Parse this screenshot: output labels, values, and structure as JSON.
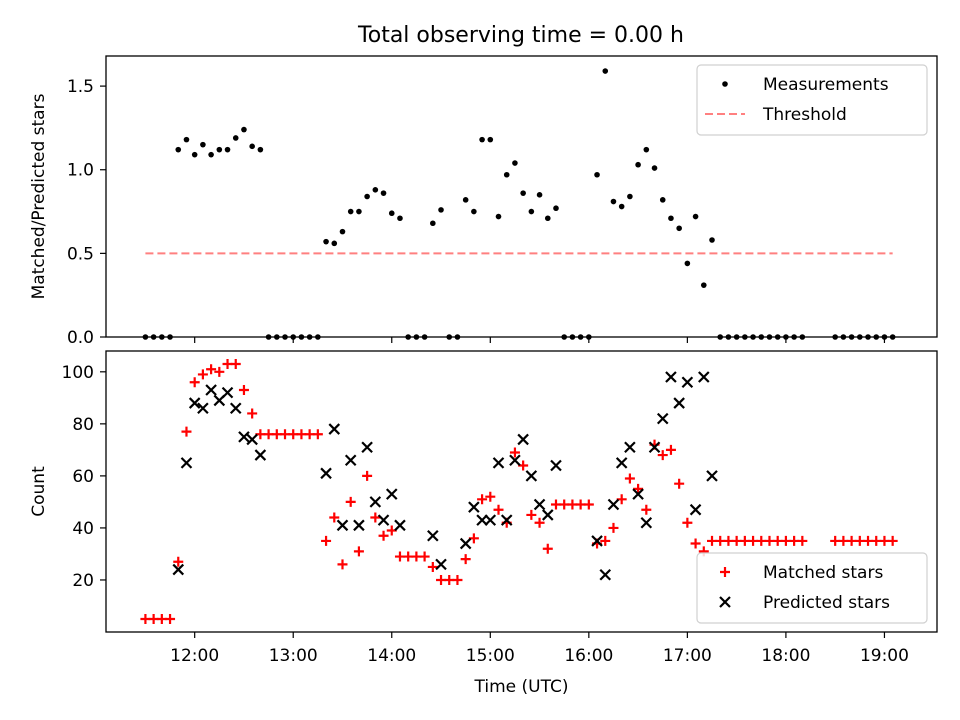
{
  "figure_title": "Total observing time = 0.00 h",
  "chart_data": [
    {
      "type": "scatter",
      "title": "Total observing time = 0.00 h",
      "xlabel": "",
      "ylabel": "Matched/Predicted stars",
      "xlim": [
        "11:06",
        "19:32"
      ],
      "ylim": [
        0,
        1.68
      ],
      "yticks": [
        0.0,
        0.5,
        1.0,
        1.5
      ],
      "ytick_labels": [
        "0.0",
        "0.5",
        "1.0",
        "1.5"
      ],
      "legend_position": "top-right",
      "series": [
        {
          "name": "Measurements",
          "marker": "dot",
          "color": "#000000",
          "points": [
            [
              "11:30",
              0
            ],
            [
              "11:35",
              0
            ],
            [
              "11:40",
              0
            ],
            [
              "11:45",
              0
            ],
            [
              "11:50",
              1.12
            ],
            [
              "11:55",
              1.18
            ],
            [
              "12:00",
              1.09
            ],
            [
              "12:05",
              1.15
            ],
            [
              "12:10",
              1.09
            ],
            [
              "12:15",
              1.12
            ],
            [
              "12:20",
              1.12
            ],
            [
              "12:25",
              1.19
            ],
            [
              "12:30",
              1.24
            ],
            [
              "12:35",
              1.14
            ],
            [
              "12:40",
              1.12
            ],
            [
              "12:45",
              0
            ],
            [
              "12:50",
              0
            ],
            [
              "12:55",
              0
            ],
            [
              "13:00",
              0
            ],
            [
              "13:05",
              0
            ],
            [
              "13:10",
              0
            ],
            [
              "13:15",
              0
            ],
            [
              "13:20",
              0.57
            ],
            [
              "13:25",
              0.56
            ],
            [
              "13:30",
              0.63
            ],
            [
              "13:35",
              0.75
            ],
            [
              "13:40",
              0.75
            ],
            [
              "13:45",
              0.84
            ],
            [
              "13:50",
              0.88
            ],
            [
              "13:55",
              0.86
            ],
            [
              "14:00",
              0.74
            ],
            [
              "14:05",
              0.71
            ],
            [
              "14:10",
              0
            ],
            [
              "14:15",
              0
            ],
            [
              "14:20",
              0
            ],
            [
              "14:25",
              0.68
            ],
            [
              "14:30",
              0.76
            ],
            [
              "14:35",
              0
            ],
            [
              "14:40",
              0
            ],
            [
              "14:45",
              0.82
            ],
            [
              "14:50",
              0.75
            ],
            [
              "14:55",
              1.18
            ],
            [
              "15:00",
              1.18
            ],
            [
              "15:05",
              0.72
            ],
            [
              "15:10",
              0.97
            ],
            [
              "15:15",
              1.04
            ],
            [
              "15:20",
              0.86
            ],
            [
              "15:25",
              0.75
            ],
            [
              "15:30",
              0.85
            ],
            [
              "15:35",
              0.71
            ],
            [
              "15:40",
              0.77
            ],
            [
              "15:45",
              0
            ],
            [
              "15:50",
              0
            ],
            [
              "15:55",
              0
            ],
            [
              "16:00",
              0
            ],
            [
              "16:05",
              0.97
            ],
            [
              "16:10",
              1.59
            ],
            [
              "16:15",
              0.81
            ],
            [
              "16:20",
              0.78
            ],
            [
              "16:25",
              0.84
            ],
            [
              "16:30",
              1.03
            ],
            [
              "16:35",
              1.12
            ],
            [
              "16:40",
              1.01
            ],
            [
              "16:45",
              0.82
            ],
            [
              "16:50",
              0.71
            ],
            [
              "16:55",
              0.65
            ],
            [
              "17:00",
              0.44
            ],
            [
              "17:05",
              0.72
            ],
            [
              "17:10",
              0.31
            ],
            [
              "17:15",
              0.58
            ],
            [
              "17:20",
              0
            ],
            [
              "17:25",
              0
            ],
            [
              "17:30",
              0
            ],
            [
              "17:35",
              0
            ],
            [
              "17:40",
              0
            ],
            [
              "17:45",
              0
            ],
            [
              "17:50",
              0
            ],
            [
              "17:55",
              0
            ],
            [
              "18:00",
              0
            ],
            [
              "18:05",
              0
            ],
            [
              "18:10",
              0
            ],
            [
              "18:30",
              0
            ],
            [
              "18:35",
              0
            ],
            [
              "18:40",
              0
            ],
            [
              "18:45",
              0
            ],
            [
              "18:50",
              0
            ],
            [
              "18:55",
              0
            ],
            [
              "19:00",
              0
            ],
            [
              "19:05",
              0
            ]
          ]
        },
        {
          "name": "Threshold",
          "marker": "dashed-line",
          "color": "#ff8080",
          "points": [
            [
              "11:30",
              0.5
            ],
            [
              "19:05",
              0.5
            ]
          ]
        }
      ]
    },
    {
      "type": "scatter",
      "title": "",
      "xlabel": "Time (UTC)",
      "ylabel": "Count",
      "xlim": [
        "11:06",
        "19:32"
      ],
      "ylim": [
        0,
        108
      ],
      "yticks": [
        20,
        40,
        60,
        80,
        100
      ],
      "ytick_labels": [
        "20",
        "40",
        "60",
        "80",
        "100"
      ],
      "xticks": [
        "12:00",
        "13:00",
        "14:00",
        "15:00",
        "16:00",
        "17:00",
        "18:00",
        "19:00"
      ],
      "legend_position": "bottom-right",
      "series": [
        {
          "name": "Matched stars",
          "marker": "plus",
          "color": "#ff0000",
          "points": [
            [
              "11:30",
              5
            ],
            [
              "11:35",
              5
            ],
            [
              "11:40",
              5
            ],
            [
              "11:45",
              5
            ],
            [
              "11:50",
              27
            ],
            [
              "11:55",
              77
            ],
            [
              "12:00",
              96
            ],
            [
              "12:05",
              99
            ],
            [
              "12:10",
              101
            ],
            [
              "12:15",
              100
            ],
            [
              "12:20",
              103
            ],
            [
              "12:25",
              103
            ],
            [
              "12:30",
              93
            ],
            [
              "12:35",
              84
            ],
            [
              "12:40",
              76
            ],
            [
              "12:45",
              76
            ],
            [
              "12:50",
              76
            ],
            [
              "12:55",
              76
            ],
            [
              "13:00",
              76
            ],
            [
              "13:05",
              76
            ],
            [
              "13:10",
              76
            ],
            [
              "13:15",
              76
            ],
            [
              "13:20",
              35
            ],
            [
              "13:25",
              44
            ],
            [
              "13:30",
              26
            ],
            [
              "13:35",
              50
            ],
            [
              "13:40",
              31
            ],
            [
              "13:45",
              60
            ],
            [
              "13:50",
              44
            ],
            [
              "13:55",
              37
            ],
            [
              "14:00",
              39
            ],
            [
              "14:05",
              29
            ],
            [
              "14:10",
              29
            ],
            [
              "14:15",
              29
            ],
            [
              "14:20",
              29
            ],
            [
              "14:25",
              25
            ],
            [
              "14:30",
              20
            ],
            [
              "14:35",
              20
            ],
            [
              "14:40",
              20
            ],
            [
              "14:45",
              28
            ],
            [
              "14:50",
              36
            ],
            [
              "14:55",
              51
            ],
            [
              "15:00",
              52
            ],
            [
              "15:05",
              47
            ],
            [
              "15:10",
              42
            ],
            [
              "15:15",
              69
            ],
            [
              "15:20",
              64
            ],
            [
              "15:25",
              45
            ],
            [
              "15:30",
              42
            ],
            [
              "15:35",
              32
            ],
            [
              "15:40",
              49
            ],
            [
              "15:45",
              49
            ],
            [
              "15:50",
              49
            ],
            [
              "15:55",
              49
            ],
            [
              "16:00",
              49
            ],
            [
              "16:05",
              34
            ],
            [
              "16:10",
              35
            ],
            [
              "16:15",
              40
            ],
            [
              "16:20",
              51
            ],
            [
              "16:25",
              59
            ],
            [
              "16:30",
              55
            ],
            [
              "16:35",
              47
            ],
            [
              "16:40",
              72
            ],
            [
              "16:45",
              68
            ],
            [
              "16:50",
              70
            ],
            [
              "16:55",
              57
            ],
            [
              "17:00",
              42
            ],
            [
              "17:05",
              34
            ],
            [
              "17:10",
              31
            ],
            [
              "17:15",
              35
            ],
            [
              "17:20",
              35
            ],
            [
              "17:25",
              35
            ],
            [
              "17:30",
              35
            ],
            [
              "17:35",
              35
            ],
            [
              "17:40",
              35
            ],
            [
              "17:45",
              35
            ],
            [
              "17:50",
              35
            ],
            [
              "17:55",
              35
            ],
            [
              "18:00",
              35
            ],
            [
              "18:05",
              35
            ],
            [
              "18:10",
              35
            ],
            [
              "18:30",
              35
            ],
            [
              "18:35",
              35
            ],
            [
              "18:40",
              35
            ],
            [
              "18:45",
              35
            ],
            [
              "18:50",
              35
            ],
            [
              "18:55",
              35
            ],
            [
              "19:00",
              35
            ],
            [
              "19:05",
              35
            ]
          ]
        },
        {
          "name": "Predicted stars",
          "marker": "x",
          "color": "#000000",
          "points": [
            [
              "11:50",
              24
            ],
            [
              "11:55",
              65
            ],
            [
              "12:00",
              88
            ],
            [
              "12:05",
              86
            ],
            [
              "12:10",
              93
            ],
            [
              "12:15",
              89
            ],
            [
              "12:20",
              92
            ],
            [
              "12:25",
              86
            ],
            [
              "12:30",
              75
            ],
            [
              "12:35",
              74
            ],
            [
              "12:40",
              68
            ],
            [
              "13:20",
              61
            ],
            [
              "13:25",
              78
            ],
            [
              "13:30",
              41
            ],
            [
              "13:35",
              66
            ],
            [
              "13:40",
              41
            ],
            [
              "13:45",
              71
            ],
            [
              "13:50",
              50
            ],
            [
              "13:55",
              43
            ],
            [
              "14:00",
              53
            ],
            [
              "14:05",
              41
            ],
            [
              "14:25",
              37
            ],
            [
              "14:30",
              26
            ],
            [
              "14:45",
              34
            ],
            [
              "14:50",
              48
            ],
            [
              "14:55",
              43
            ],
            [
              "15:00",
              43
            ],
            [
              "15:05",
              65
            ],
            [
              "15:10",
              43
            ],
            [
              "15:15",
              66
            ],
            [
              "15:20",
              74
            ],
            [
              "15:25",
              60
            ],
            [
              "15:30",
              49
            ],
            [
              "15:35",
              45
            ],
            [
              "15:40",
              64
            ],
            [
              "16:05",
              35
            ],
            [
              "16:10",
              22
            ],
            [
              "16:15",
              49
            ],
            [
              "16:20",
              65
            ],
            [
              "16:25",
              71
            ],
            [
              "16:30",
              53
            ],
            [
              "16:35",
              42
            ],
            [
              "16:40",
              71
            ],
            [
              "16:45",
              82
            ],
            [
              "16:50",
              98
            ],
            [
              "16:55",
              88
            ],
            [
              "17:00",
              96
            ],
            [
              "17:05",
              47
            ],
            [
              "17:10",
              98
            ],
            [
              "17:15",
              60
            ]
          ]
        }
      ]
    }
  ]
}
